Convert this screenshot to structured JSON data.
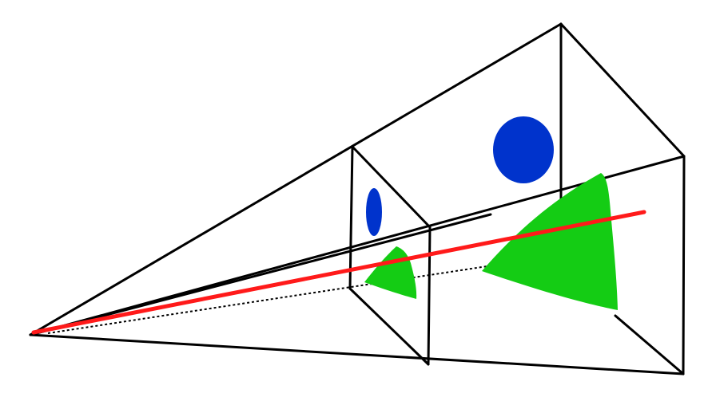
{
  "diagram": {
    "colors": {
      "background": "#ffffff",
      "frustum_edges": "#000000",
      "ray": "#ff1a1a",
      "hidden_ray": "#000000",
      "near_plane_circle": "#0033cc",
      "far_plane_circle": "#0033cc",
      "near_plane_triangle": "#14cc14",
      "far_plane_triangle": "#14cc14"
    },
    "elements": [
      "camera-frustum",
      "near-image-plane",
      "far-image-plane",
      "projection-ray",
      "hidden-ray-segment",
      "near-plane-circle",
      "far-plane-circle",
      "near-plane-triangle",
      "far-plane-triangle"
    ]
  }
}
